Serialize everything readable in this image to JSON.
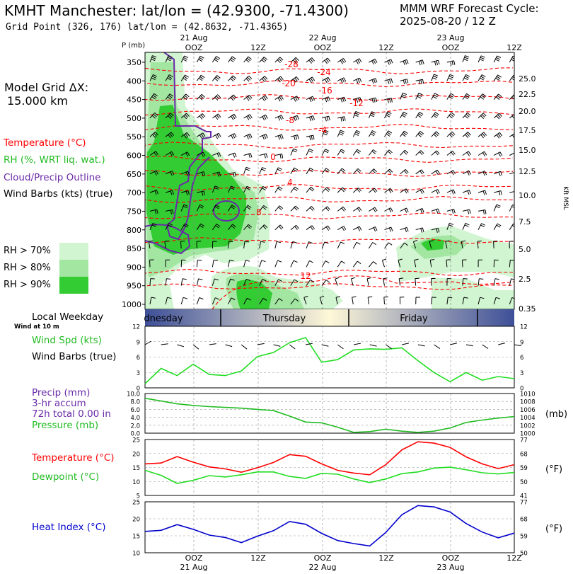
{
  "header": {
    "title": "KMHT Manchester:  lat/lon = (42.9300, -71.4300)",
    "grid_point": "Grid Point (326, 176) lat/lon = (42.8632, -71.4365)",
    "forecast_label": "MMM WRF Forecast Cycle:",
    "forecast_cycle": "2025-08-20 / 12  Z"
  },
  "sidebar": {
    "model_grid": "Model Grid ΔX:",
    "model_dx": "15.000 km",
    "temperature_label": "Temperature (°C)",
    "rh_label": "RH (%, WRT liq. wat.)",
    "cloud_label": "Cloud/Precip Outline",
    "wind_label": "Wind Barbs (kts) (true)",
    "rh_legend": [
      "RH > 70%",
      "RH > 80%",
      "RH > 90%"
    ],
    "weekday_label": "Local Weekday",
    "wind_at": "Wind at 10 m",
    "wind_spd_label": "Wind Spd (kts)",
    "wind_barbs_label": "Wind Barbs (true)",
    "precip_label": "Precip (mm)",
    "accum_label": "3-hr accum",
    "total_label": "72h total 0.00 in",
    "pressure_label": "Pressure (mb)",
    "temp2_label": "Temperature (°C)",
    "dewpoint_label": "Dewpoint (°C)",
    "heat_label": "Heat Index (°C)"
  },
  "colors": {
    "temperature": "#ff0000",
    "rh": "#22bb22",
    "cloud": "#6a2aa8",
    "heat_index": "#0000cc",
    "rh70": "#d0f5d0",
    "rh80": "#a2e6a2",
    "rh90": "#33cc33"
  },
  "time_axis": {
    "top_labels": [
      "OOZ",
      "12Z",
      "OOZ",
      "12Z",
      "OOZ",
      "12Z"
    ],
    "date_labels": [
      "21 Aug",
      "22 Aug",
      "23 Aug"
    ],
    "weekdays": [
      "dnesday",
      "Thursday",
      "Friday"
    ]
  },
  "chart_data": [
    {
      "type": "heatmap",
      "name": "vertical-cross-section",
      "ylabel": "P (mb)",
      "y_ticks": [
        350,
        400,
        450,
        500,
        550,
        600,
        650,
        700,
        750,
        800,
        850,
        900,
        950,
        1000
      ],
      "right_label": "Kft MSL",
      "right_ticks": [
        "25.0",
        "22.5",
        "20.0",
        "17.5",
        "15.0",
        "12.5",
        "10.0",
        "7.5",
        "5.0",
        "2.5",
        "0.35"
      ],
      "temperature_contour_labels": [
        "-28",
        "-24",
        "-20",
        "-16",
        "-12",
        "-8",
        "-4",
        "0",
        "4",
        "8",
        "12"
      ],
      "rh_thresholds": [
        70,
        80,
        90
      ]
    },
    {
      "type": "line",
      "name": "wind-speed",
      "ylim": [
        0,
        12
      ],
      "y_ticks": [
        "0",
        "3",
        "6",
        "9",
        "12"
      ],
      "series": [
        {
          "values": [
            0.8,
            3.8,
            2.4,
            4.6,
            2.6,
            2.4,
            3.3,
            6.1,
            6.9,
            8.8,
            9.8,
            5.0,
            5.5,
            7.4,
            7.6,
            7.5,
            7.8,
            5.3,
            3.0,
            1.2,
            3.0,
            1.5,
            2.2,
            1.8
          ]
        }
      ]
    },
    {
      "type": "line",
      "name": "pressure",
      "ylim": [
        1000,
        1010
      ],
      "y_ticks_left": [
        "0.0",
        "2.0",
        "4.0",
        "6.0",
        "8.0",
        "10.0"
      ],
      "y_ticks_right": [
        "1000",
        "1002",
        "1004",
        "1006",
        "1008",
        "1010"
      ],
      "right_unit": "(mb)",
      "series": [
        {
          "values": [
            1008.8,
            1008.1,
            1007.4,
            1007.0,
            1006.7,
            1006.5,
            1006.3,
            1006.0,
            1005.7,
            1004.3,
            1002.8,
            1002.6,
            1001.5,
            1000.2,
            1000.4,
            1001.0,
            1000.5,
            1000.2,
            1000.5,
            1001.3,
            1002.7,
            1003.3,
            1003.8,
            1004.2
          ]
        }
      ]
    },
    {
      "type": "line",
      "name": "temperature-dewpoint",
      "ylim": [
        5,
        25
      ],
      "y_ticks_left": [
        "5",
        "10",
        "15",
        "20",
        "25"
      ],
      "y_ticks_right": [
        "41",
        "50",
        "59",
        "68",
        "77"
      ],
      "right_unit": "(°F)",
      "series": [
        {
          "name": "Temperature (°C)",
          "values": [
            16.3,
            16.6,
            18.9,
            16.9,
            15.2,
            14.5,
            13.3,
            14.9,
            16.8,
            19.6,
            19.0,
            16.3,
            14.0,
            13.0,
            12.4,
            16.0,
            21.3,
            24.2,
            23.7,
            22.2,
            18.8,
            16.3,
            14.6,
            16.0
          ]
        },
        {
          "name": "Dewpoint (°C)",
          "values": [
            14.0,
            12.2,
            9.3,
            10.4,
            12.1,
            11.6,
            12.4,
            13.4,
            13.4,
            11.8,
            11.1,
            12.9,
            12.6,
            10.9,
            9.6,
            10.9,
            12.8,
            13.4,
            14.8,
            15.1,
            14.2,
            13.1,
            12.7,
            13.2
          ]
        }
      ]
    },
    {
      "type": "line",
      "name": "heat-index",
      "ylim": [
        10,
        25
      ],
      "y_ticks_left": [
        "10",
        "15",
        "20",
        "25"
      ],
      "y_ticks_right": [
        "50",
        "59",
        "68",
        "77"
      ],
      "right_unit": "(°F)",
      "series": [
        {
          "name": "Heat Index (°C)",
          "values": [
            16.3,
            16.6,
            18.3,
            16.9,
            15.2,
            14.5,
            13.0,
            14.9,
            16.5,
            19.2,
            18.4,
            15.7,
            13.6,
            12.7,
            12.0,
            16.0,
            21.2,
            23.9,
            23.5,
            22.0,
            18.6,
            16.1,
            14.4,
            15.8
          ]
        }
      ]
    }
  ]
}
